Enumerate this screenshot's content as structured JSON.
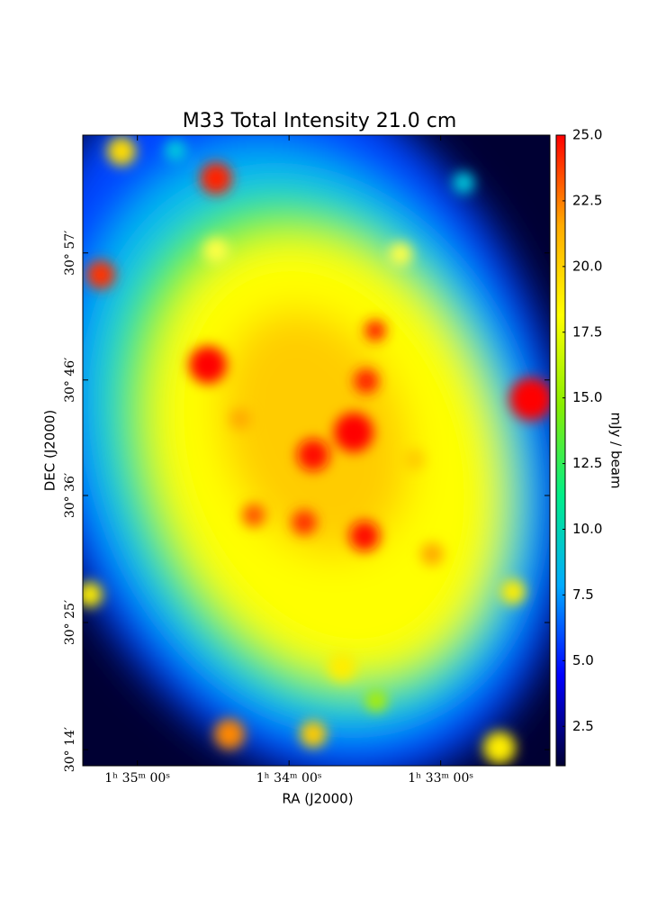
{
  "chart_data": {
    "type": "image",
    "title": "M33 Total Intensity 21.0 cm",
    "xlabel": "RA (J2000)",
    "ylabel": "DEC (J2000)",
    "colorbar_label": "mJy / beam",
    "xlim": [
      23.84,
      23.07
    ],
    "ylim": [
      30.21,
      31.12
    ],
    "xticks": [
      {
        "value": 23.75,
        "label": "1ʰ 35ᵐ 00ˢ"
      },
      {
        "value": 23.5,
        "label": "1ʰ 34ᵐ 00ˢ"
      },
      {
        "value": 23.25,
        "label": "1ʰ 33ᵐ 00ˢ"
      }
    ],
    "yticks": [
      {
        "value": 30.2333,
        "label": "30° 14′"
      },
      {
        "value": 30.4167,
        "label": "30° 25′"
      },
      {
        "value": 30.6,
        "label": "30° 36′"
      },
      {
        "value": 30.7667,
        "label": "30° 46′"
      },
      {
        "value": 30.95,
        "label": "30° 57′"
      }
    ],
    "clim": [
      1,
      25
    ],
    "cticks": [
      2.5,
      {
        "value": 5,
        "label": "5.0"
      },
      7.5,
      {
        "value": 10,
        "label": "10.0"
      },
      12.5,
      {
        "value": 15,
        "label": "15.0"
      },
      17.5,
      {
        "value": 20,
        "label": "20.0"
      },
      22.5,
      {
        "value": 25,
        "label": "25.0"
      }
    ],
    "colormap": [
      "#000033",
      "#0000ff",
      "#00aaff",
      "#00ee88",
      "#88ee00",
      "#ffff00",
      "#ffaa00",
      "#ff0000"
    ]
  }
}
